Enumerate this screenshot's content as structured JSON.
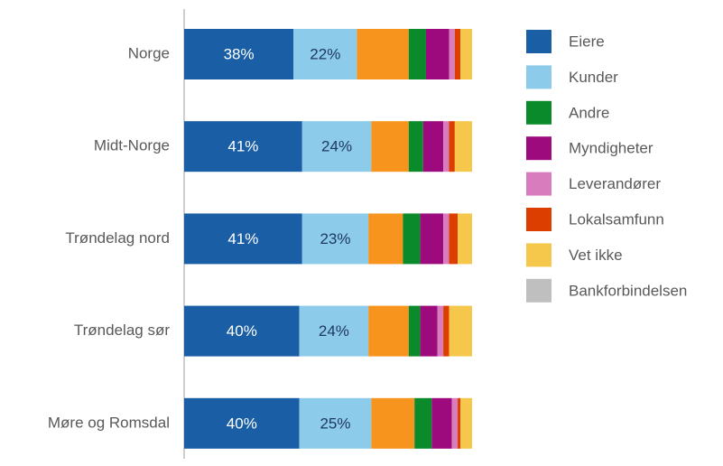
{
  "chart_data": {
    "type": "stacked-bar-horizontal",
    "categories": [
      "Norge",
      "Midt-Norge",
      "Trøndelag nord",
      "Trøndelag sør",
      "Møre og Romsdal"
    ],
    "xlim": [
      0,
      100
    ],
    "series": [
      {
        "name": "Eiere",
        "color": "#1a5fa5",
        "values": [
          38,
          41,
          41,
          40,
          40
        ],
        "value_labels": [
          "38%",
          "41%",
          "41%",
          "40%",
          "40%"
        ],
        "label_color": "#ffffff"
      },
      {
        "name": "Kunder",
        "color": "#8ccbea",
        "values": [
          22,
          24,
          23,
          24,
          25
        ],
        "value_labels": [
          "22%",
          "24%",
          "23%",
          "24%",
          "25%"
        ],
        "label_color": "#1f3864"
      },
      {
        "name": null,
        "color": "#f7941d",
        "values": [
          18,
          13,
          12,
          14,
          15
        ]
      },
      {
        "name": "Andre",
        "color": "#0b8a2b",
        "values": [
          6,
          5,
          6,
          4,
          6
        ]
      },
      {
        "name": "Myndigheter",
        "color": "#9c0a7e",
        "values": [
          8,
          7,
          8,
          6,
          7
        ]
      },
      {
        "name": "Leverandører",
        "color": "#d97cbd",
        "values": [
          2,
          2,
          2,
          2,
          2
        ]
      },
      {
        "name": "Lokalsamfunn",
        "color": "#dc3e00",
        "values": [
          2,
          2,
          3,
          2,
          1
        ]
      },
      {
        "name": "Vet ikke",
        "color": "#f5c84c",
        "values": [
          4,
          6,
          5,
          8,
          4
        ]
      },
      {
        "name": "Bankforbindelsen",
        "color": "#bfbfbf",
        "values": [
          0,
          0,
          0,
          0,
          0
        ]
      }
    ]
  }
}
